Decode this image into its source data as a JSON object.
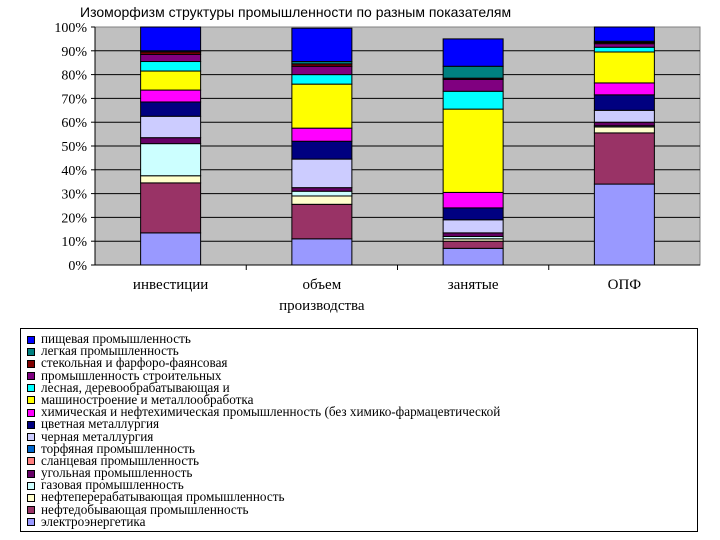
{
  "title": "Изоморфизм структуры промышленности по разным показателям",
  "chart_data": {
    "type": "bar",
    "stacked": true,
    "categories": [
      "инвестиции",
      "объем производства",
      "занятые",
      "ОПФ"
    ],
    "category_lines": [
      [
        "инвестиции"
      ],
      [
        "объем",
        "производства"
      ],
      [
        "занятые"
      ],
      [
        "ОПФ"
      ]
    ],
    "ylim": [
      0,
      100
    ],
    "yticks": [
      "0%",
      "10%",
      "20%",
      "30%",
      "40%",
      "50%",
      "60%",
      "70%",
      "80%",
      "90%",
      "100%"
    ],
    "grid": true,
    "legend_position": "bottom",
    "series": [
      {
        "name": "электроэнергетика",
        "color": "#9999ff",
        "values": [
          13.5,
          11,
          7,
          34
        ]
      },
      {
        "name": "нефтедобывающая промышленность",
        "color": "#993366",
        "values": [
          21,
          14.5,
          3,
          21.5
        ]
      },
      {
        "name": "нефтеперерабатывающая промышленность",
        "color": "#ffffcc",
        "values": [
          3,
          3.5,
          1,
          2.5
        ]
      },
      {
        "name": "газовая промышленность",
        "color": "#ccffff",
        "values": [
          13.5,
          2,
          1,
          0.5
        ]
      },
      {
        "name": "угольная промышленность",
        "color": "#660066",
        "values": [
          2.5,
          1.5,
          1.5,
          1.5
        ]
      },
      {
        "name": "сланцевая промышленность",
        "color": "#ff8080",
        "values": [
          0,
          0,
          0,
          0
        ]
      },
      {
        "name": "торфяная промышленность",
        "color": "#0066cc",
        "values": [
          0,
          0,
          0,
          0
        ]
      },
      {
        "name": "черная металлургия",
        "color": "#ccccff",
        "values": [
          9,
          12,
          5.5,
          5
        ]
      },
      {
        "name": "цветная металлургия",
        "color": "#000080",
        "values": [
          6,
          7.5,
          5,
          6.5
        ]
      },
      {
        "name": "химическая и нефтехимическая промышленность (без химико-фармацевтической",
        "color": "#ff00ff",
        "values": [
          5,
          5.5,
          6.5,
          5
        ]
      },
      {
        "name": "машиностроение и металлообработка",
        "color": "#ffff00",
        "values": [
          8,
          18.5,
          35,
          13
        ]
      },
      {
        "name": "лесная, деревообрабатывающая и",
        "color": "#00ffff",
        "values": [
          4,
          4,
          7.5,
          2
        ]
      },
      {
        "name": "промышленность строительных",
        "color": "#800080",
        "values": [
          3,
          3.5,
          5,
          1.5
        ]
      },
      {
        "name": "стекольная и фарфоро-фаянсовая",
        "color": "#800000",
        "values": [
          1,
          1,
          0.5,
          0.5
        ]
      },
      {
        "name": "легкая промышленность",
        "color": "#008080",
        "values": [
          0.5,
          1,
          5,
          0.5
        ]
      },
      {
        "name": "пищевая промышленность",
        "color": "#0000ff",
        "values": [
          10,
          14,
          11.5,
          6
        ]
      }
    ]
  }
}
